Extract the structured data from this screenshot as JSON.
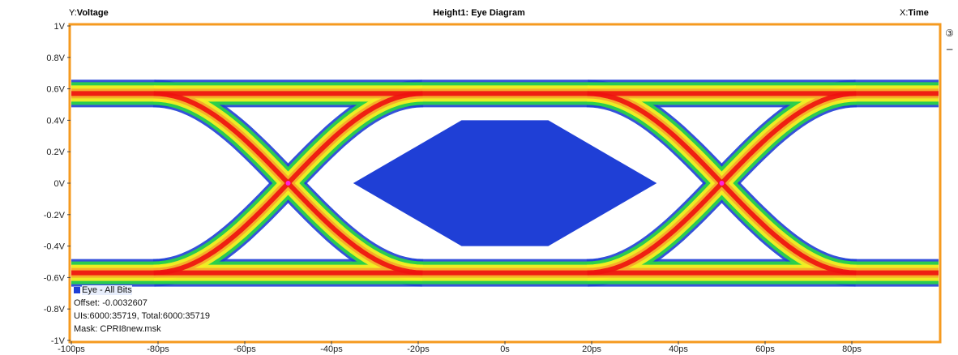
{
  "header": {
    "y_prefix": "Y:",
    "y_axis_label": "Voltage",
    "title": "Height1: Eye Diagram",
    "x_prefix": "X:",
    "x_axis_label": "Time"
  },
  "side_tools": {
    "channel_label": "③",
    "collapse_label": "−"
  },
  "legend": {
    "series_name": "Eye - All Bits",
    "offset_text": "Offset: -0.0032607",
    "uis_text": "UIs:6000:35719, Total:6000:35719",
    "mask_text": "Mask: CPRI8new.msk"
  },
  "colors": {
    "frame": "#f59a1f",
    "mask": "#1f3fd6",
    "crossing": "#ff22dd",
    "heat_high": "#ee1010",
    "heat_mid": "#f7ee22",
    "heat_low": "#2ad24a",
    "heat_edge": "#1f3fd6"
  },
  "chart_data": {
    "type": "eye-diagram",
    "title": "Height1: Eye Diagram",
    "xlabel": "Time",
    "ylabel": "Voltage",
    "xlim": [
      -100,
      100
    ],
    "ylim": [
      -1,
      1
    ],
    "x_ticks": [
      {
        "value": -100,
        "label": "-100ps"
      },
      {
        "value": -80,
        "label": "-80ps"
      },
      {
        "value": -60,
        "label": "-60ps"
      },
      {
        "value": -40,
        "label": "-40ps"
      },
      {
        "value": -20,
        "label": "-20ps"
      },
      {
        "value": 0,
        "label": "0s"
      },
      {
        "value": 20,
        "label": "20ps"
      },
      {
        "value": 40,
        "label": "40ps"
      },
      {
        "value": 60,
        "label": "60ps"
      },
      {
        "value": 80,
        "label": "80ps"
      }
    ],
    "y_ticks": [
      {
        "value": 1,
        "label": "1V"
      },
      {
        "value": 0.8,
        "label": "0.8V"
      },
      {
        "value": 0.6,
        "label": "0.6V"
      },
      {
        "value": 0.4,
        "label": "0.4V"
      },
      {
        "value": 0.2,
        "label": "0.2V"
      },
      {
        "value": 0,
        "label": "0V"
      },
      {
        "value": -0.2,
        "label": "-0.2V"
      },
      {
        "value": -0.4,
        "label": "-0.4V"
      },
      {
        "value": -0.6,
        "label": "-0.6V"
      },
      {
        "value": -0.8,
        "label": "-0.8V"
      },
      {
        "value": -1,
        "label": "-1V"
      }
    ],
    "grid": false,
    "high_level": 0.57,
    "low_level": -0.57,
    "crossings": [
      -50,
      50
    ],
    "mask_polygon": [
      [
        -35,
        0
      ],
      [
        -10,
        0.4
      ],
      [
        10,
        0.4
      ],
      [
        35,
        0
      ],
      [
        10,
        -0.4
      ],
      [
        -10,
        -0.4
      ]
    ]
  }
}
